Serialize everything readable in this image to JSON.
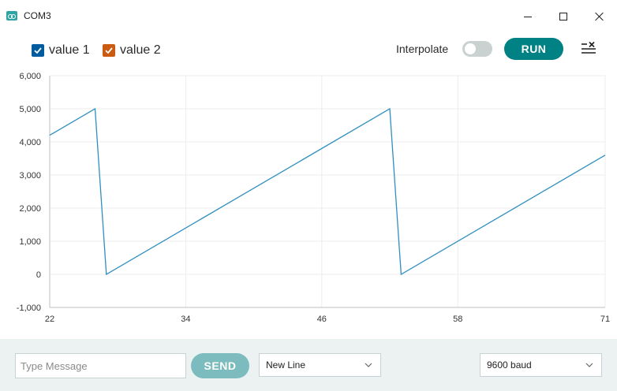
{
  "window": {
    "title": "COM3"
  },
  "toolbar": {
    "legend": [
      {
        "label": "value 1",
        "color": "#005c9e",
        "checked": true
      },
      {
        "label": "value 2",
        "color": "#c95b12",
        "checked": true
      }
    ],
    "interpolate_label": "Interpolate",
    "interpolate_on": false,
    "run_label": "RUN"
  },
  "footer": {
    "message_placeholder": "Type Message",
    "send_label": "SEND",
    "line_ending": "New Line",
    "baud_rate": "9600 baud"
  },
  "chart_data": {
    "type": "line",
    "title": "",
    "xlabel": "",
    "ylabel": "",
    "xlim": [
      22,
      71
    ],
    "ylim": [
      -1000,
      6000
    ],
    "x_ticks": [
      22,
      34,
      46,
      58,
      71
    ],
    "y_ticks": [
      -1000,
      0,
      1000,
      2000,
      3000,
      4000,
      5000,
      6000
    ],
    "y_tick_labels": [
      "-1,000",
      "0",
      "1,000",
      "2,000",
      "3,000",
      "4,000",
      "5,000",
      "6,000"
    ],
    "grid": true,
    "series": [
      {
        "name": "value 1",
        "color": "#2f8fc0",
        "points": [
          [
            22,
            4200
          ],
          [
            26,
            5000
          ],
          [
            27,
            0
          ],
          [
            52,
            5000
          ],
          [
            53,
            0
          ],
          [
            71,
            3600
          ]
        ]
      }
    ]
  }
}
